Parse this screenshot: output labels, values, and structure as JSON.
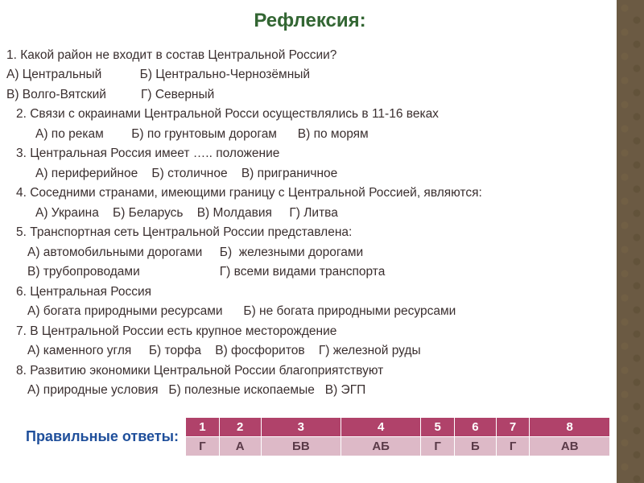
{
  "title": "Рефлексия:",
  "colors": {
    "title": "#336633",
    "text": "#3a2f2f",
    "answers_label": "#1f4f9b",
    "table_header_bg": "#b0426a",
    "table_header_fg": "#ffffff",
    "table_value_bg": "#ddb9c7",
    "table_value_fg": "#5a3a48",
    "sidebar_bg": "#6b5a43"
  },
  "typography": {
    "title_fontsize": 24,
    "body_fontsize": 15.5,
    "answers_label_fontsize": 18,
    "table_fontsize": 15
  },
  "questions": [
    {
      "indent": 0,
      "text": "1. Какой район не входит в состав Центральной России?"
    },
    {
      "indent": 0,
      "text": "А) Центральный           Б) Центрально-Чернозёмный"
    },
    {
      "indent": 0,
      "text": "В) Волго-Вятский          Г) Северный"
    },
    {
      "indent": 1,
      "text": "2. Связи с окраинами Центральной Росси осуществлялись в 11-16 веках"
    },
    {
      "indent": 3,
      "text": "А) по рекам        Б) по грунтовым дорогам      В) по морям"
    },
    {
      "indent": 1,
      "text": "3. Центральная Россия имеет ….. положение"
    },
    {
      "indent": 3,
      "text": "А) периферийное    Б) столичное    В) приграничное"
    },
    {
      "indent": 1,
      "text": "4. Соседними странами, имеющими границу с Центральной Россией, являются:"
    },
    {
      "indent": 3,
      "text": "А) Украина    Б) Беларусь    В) Молдавия     Г) Литва"
    },
    {
      "indent": 1,
      "text": "5. Транспортная сеть Центральной России представлена:"
    },
    {
      "indent": 2,
      "text": "А) автомобильными дорогами     Б)  железными дорогами"
    },
    {
      "indent": 2,
      "text": "В) трубопроводами                       Г) всеми видами транспорта"
    },
    {
      "indent": 1,
      "text": "6. Центральная Россия"
    },
    {
      "indent": 2,
      "text": "А) богата природными ресурсами      Б) не богата природными ресурсами"
    },
    {
      "indent": 1,
      "text": "7. В Центральной России есть крупное месторождение"
    },
    {
      "indent": 2,
      "text": "А) каменного угля     Б) торфа    В) фосфоритов    Г) железной руды"
    },
    {
      "indent": 1,
      "text": "8. Развитию экономики Центральной России благоприятствуют"
    },
    {
      "indent": 2,
      "text": "А) природные условия   Б) полезные ископаемые   В) ЭГП"
    }
  ],
  "answers_label": "Правильные ответы:",
  "answers": {
    "headers": [
      "1",
      "2",
      "3",
      "4",
      "5",
      "6",
      "7",
      "8"
    ],
    "values": [
      "Г",
      "А",
      "БВ",
      "АБ",
      "Г",
      "Б",
      "Г",
      "АВ"
    ]
  }
}
